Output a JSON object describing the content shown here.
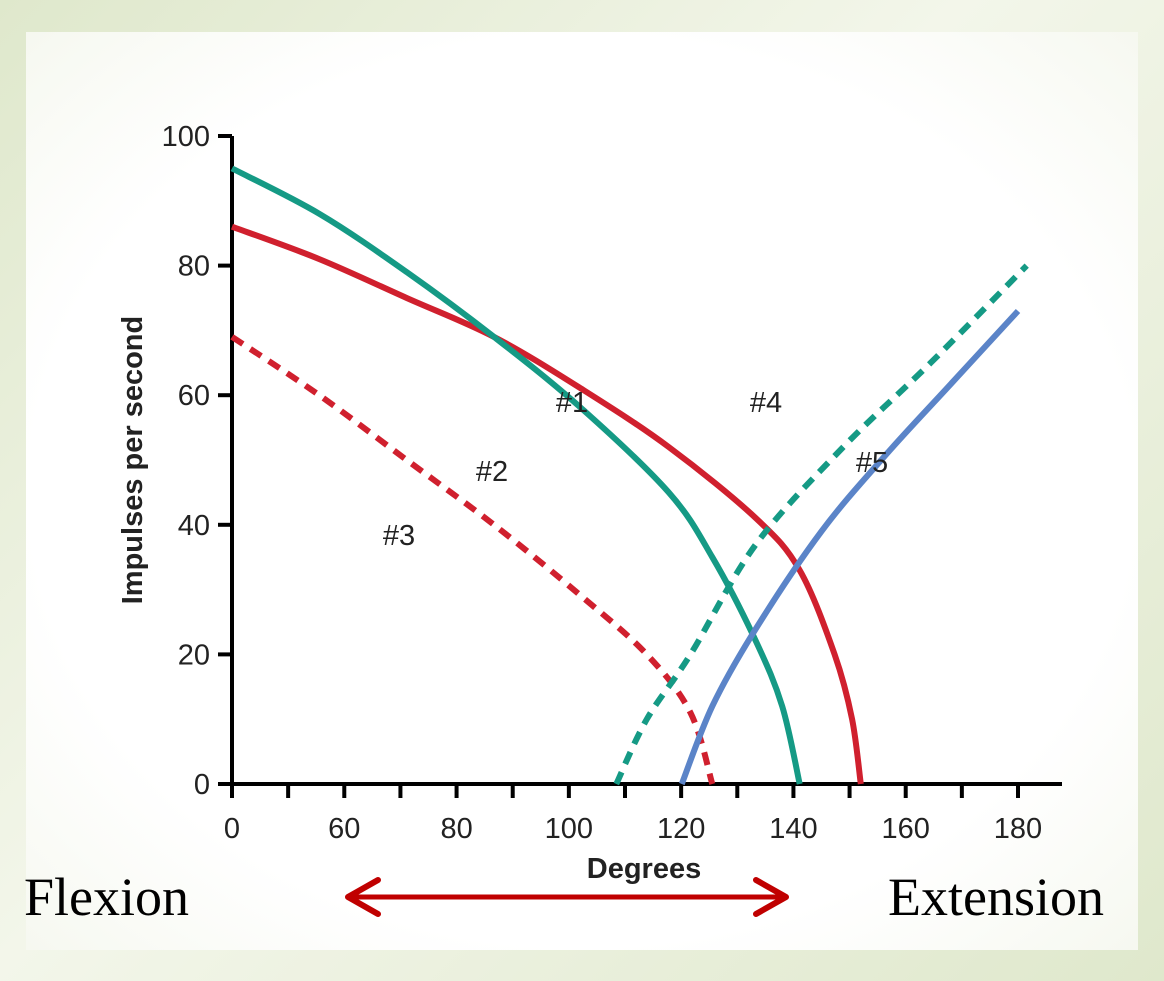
{
  "chart_data": {
    "type": "line",
    "xlabel": "Degrees",
    "ylabel": "Impulses per second",
    "x_ticks": [
      "0",
      "60",
      "80",
      "100",
      "120",
      "140",
      "160",
      "180"
    ],
    "y_ticks": [
      "100",
      "80",
      "60",
      "40",
      "20",
      "0"
    ],
    "ylim": [
      0,
      100
    ],
    "grid": false,
    "series": [
      {
        "name": "#1",
        "color": "#d0202e",
        "style": "solid",
        "points": [
          [
            0,
            86
          ],
          [
            20,
            81
          ],
          [
            40,
            75
          ],
          [
            60,
            69
          ],
          [
            80,
            61
          ],
          [
            100,
            52
          ],
          [
            120,
            41
          ],
          [
            130,
            33
          ],
          [
            138,
            20
          ],
          [
            142,
            10
          ],
          [
            144,
            0
          ]
        ]
      },
      {
        "name": "#2",
        "color": "#159a85",
        "style": "solid",
        "points": [
          [
            0,
            95
          ],
          [
            20,
            88
          ],
          [
            40,
            79
          ],
          [
            60,
            69
          ],
          [
            80,
            58
          ],
          [
            100,
            45
          ],
          [
            110,
            35
          ],
          [
            120,
            22
          ],
          [
            126,
            12
          ],
          [
            130,
            0
          ]
        ]
      },
      {
        "name": "#3",
        "color": "#d0202e",
        "style": "dashed",
        "points": [
          [
            0,
            69
          ],
          [
            20,
            60
          ],
          [
            40,
            50
          ],
          [
            60,
            40
          ],
          [
            80,
            29
          ],
          [
            95,
            20
          ],
          [
            105,
            11
          ],
          [
            110,
            0
          ]
        ]
      },
      {
        "name": "#4",
        "color": "#159a85",
        "style": "dashed",
        "points": [
          [
            88,
            0
          ],
          [
            95,
            10
          ],
          [
            105,
            20
          ],
          [
            120,
            37
          ],
          [
            140,
            52
          ],
          [
            160,
            65
          ],
          [
            182,
            80
          ]
        ]
      },
      {
        "name": "#5",
        "color": "#5b84c8",
        "style": "solid",
        "points": [
          [
            103,
            0
          ],
          [
            110,
            12
          ],
          [
            120,
            24
          ],
          [
            135,
            39
          ],
          [
            150,
            51
          ],
          [
            165,
            62
          ],
          [
            180,
            73
          ]
        ]
      }
    ]
  },
  "captions": {
    "left": "Flexion",
    "right": "Extension"
  },
  "colors": {
    "arrow": "#c00000",
    "axis": "#000000"
  }
}
